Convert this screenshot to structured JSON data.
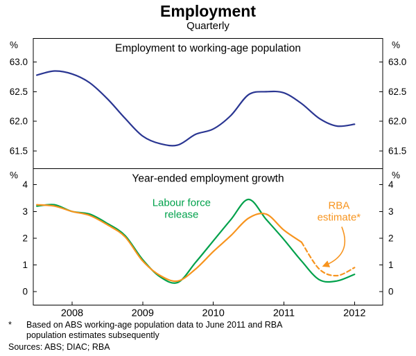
{
  "header": {
    "title": "Employment",
    "subtitle": "Quarterly"
  },
  "colors": {
    "navy": "#2a3692",
    "green": "#00a14b",
    "orange": "#f7941e",
    "axis": "#000000"
  },
  "xaxis": {
    "xlim": [
      2007.45,
      2012.4
    ],
    "ticks": [
      2008,
      2009,
      2010,
      2011,
      2012
    ]
  },
  "chart_data": [
    {
      "type": "line",
      "title": "Employment to working-age population",
      "unit_left": "%",
      "unit_right": "%",
      "ylim": [
        61.2,
        63.4
      ],
      "yticks": [
        61.5,
        62.0,
        62.5,
        63.0
      ],
      "ydecimals": 1,
      "grid": false,
      "x": [
        2007.5,
        2007.75,
        2008,
        2008.25,
        2008.5,
        2008.75,
        2009,
        2009.25,
        2009.5,
        2009.75,
        2010,
        2010.25,
        2010.5,
        2010.75,
        2011,
        2011.25,
        2011.5,
        2011.75,
        2012
      ],
      "series": [
        {
          "name": "Employment to working-age population",
          "color": "#2a3692",
          "values": [
            62.78,
            62.85,
            62.8,
            62.65,
            62.38,
            62.05,
            61.75,
            61.62,
            61.6,
            61.78,
            61.87,
            62.1,
            62.45,
            62.5,
            62.48,
            62.3,
            62.05,
            61.92,
            61.95
          ]
        }
      ]
    },
    {
      "type": "line",
      "title": "Year-ended employment growth",
      "unit_left": "%",
      "unit_right": "%",
      "ylim": [
        -0.5,
        4.6
      ],
      "yticks": [
        0,
        1,
        2,
        3,
        4
      ],
      "ydecimals": 0,
      "grid": false,
      "x": [
        2007.5,
        2007.75,
        2008,
        2008.25,
        2008.5,
        2008.75,
        2009,
        2009.25,
        2009.5,
        2009.75,
        2010,
        2010.25,
        2010.5,
        2010.75,
        2011,
        2011.25,
        2011.5,
        2011.75,
        2012
      ],
      "series": [
        {
          "name": "Labour force release",
          "color": "#00a14b",
          "values": [
            3.2,
            3.25,
            3.0,
            2.9,
            2.55,
            2.1,
            1.2,
            0.55,
            0.35,
            1.1,
            1.9,
            2.7,
            3.45,
            2.7,
            1.95,
            1.15,
            0.45,
            0.4,
            0.65
          ]
        },
        {
          "name": "RBA estimate",
          "color": "#f7941e",
          "dash_from_x": 2011.25,
          "values": [
            3.25,
            3.2,
            3.0,
            2.85,
            2.5,
            2.05,
            1.15,
            0.6,
            0.4,
            0.85,
            1.5,
            2.1,
            2.75,
            2.9,
            2.3,
            1.85,
            0.85,
            0.6,
            0.9
          ]
        }
      ],
      "annotations": [
        {
          "text": "Labour force\nrelease",
          "color": "#00a14b",
          "x": 2009.55,
          "y": 3.2
        },
        {
          "text": "RBA\nestimate*",
          "color": "#f7941e",
          "x": 2011.78,
          "y": 3.1,
          "arrow_to": {
            "x": 2011.57,
            "y": 0.97
          }
        }
      ]
    }
  ],
  "footnotes": {
    "note_marker": "*",
    "note_text": "Based on ABS working-age population data to June 2011 and RBA population estimates subsequently",
    "sources": "Sources: ABS; DIAC; RBA"
  }
}
